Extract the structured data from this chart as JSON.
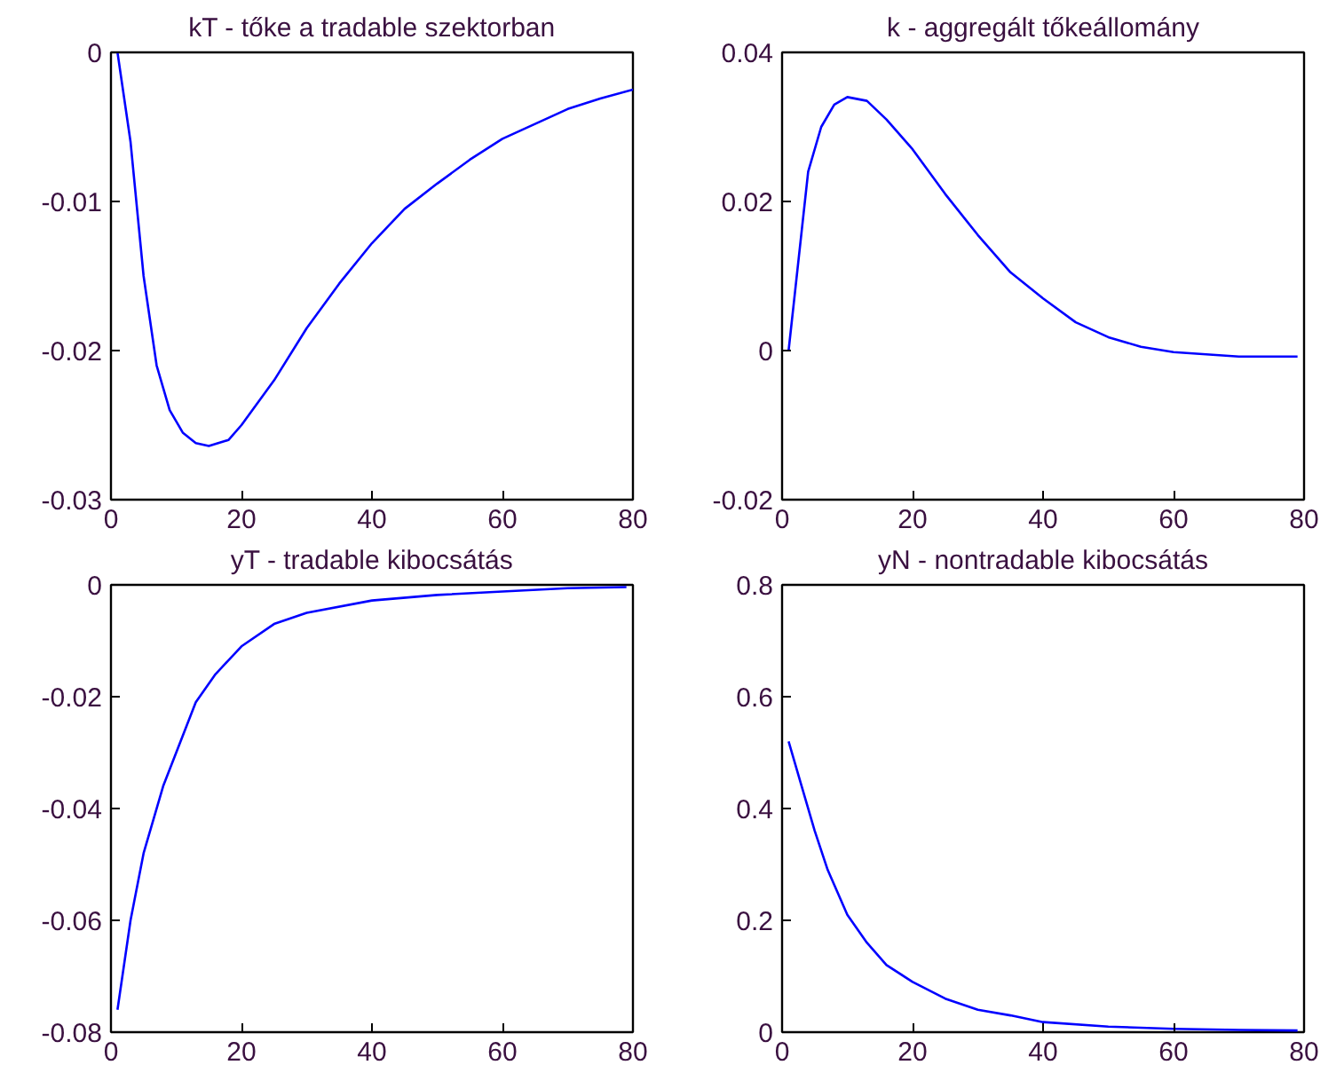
{
  "chart_data": [
    {
      "type": "line",
      "title": "kT - tőke a tradable szektorban",
      "color": "#0000ff",
      "grid": false,
      "xlim": [
        0,
        80
      ],
      "ylim": [
        -0.03,
        0
      ],
      "xticks": [
        0,
        20,
        40,
        60,
        80
      ],
      "yticks": [
        -0.03,
        -0.02,
        -0.01,
        0
      ],
      "x": [
        1,
        3,
        5,
        7,
        9,
        11,
        13,
        15,
        18,
        20,
        25,
        30,
        35,
        40,
        45,
        50,
        55,
        60,
        65,
        70,
        75,
        80
      ],
      "values": [
        0,
        -0.006,
        -0.015,
        -0.021,
        -0.024,
        -0.0255,
        -0.0262,
        -0.0264,
        -0.026,
        -0.025,
        -0.022,
        -0.0185,
        -0.0155,
        -0.0128,
        -0.0105,
        -0.0088,
        -0.0072,
        -0.0058,
        -0.0048,
        -0.0038,
        -0.0031,
        -0.0025
      ]
    },
    {
      "type": "line",
      "title": "k - aggregált tőkeállomány",
      "color": "#0000ff",
      "grid": false,
      "xlim": [
        0,
        80
      ],
      "ylim": [
        -0.02,
        0.04
      ],
      "xticks": [
        0,
        20,
        40,
        60,
        80
      ],
      "yticks": [
        -0.02,
        0,
        0.02,
        0.04
      ],
      "x": [
        1,
        2,
        3,
        4,
        6,
        8,
        10,
        13,
        16,
        20,
        25,
        30,
        35,
        40,
        45,
        50,
        55,
        60,
        65,
        70,
        79
      ],
      "values": [
        0,
        0.008,
        0.016,
        0.024,
        0.03,
        0.033,
        0.034,
        0.0335,
        0.031,
        0.027,
        0.021,
        0.0155,
        0.0105,
        0.007,
        0.0038,
        0.0018,
        0.0005,
        -0.0002,
        -0.0005,
        -0.0008,
        -0.0008
      ]
    },
    {
      "type": "line",
      "title": "yT - tradable kibocsátás",
      "color": "#0000ff",
      "grid": false,
      "xlim": [
        0,
        80
      ],
      "ylim": [
        -0.08,
        0
      ],
      "xticks": [
        0,
        20,
        40,
        60,
        80
      ],
      "yticks": [
        -0.08,
        -0.06,
        -0.04,
        -0.02,
        0
      ],
      "x": [
        1,
        3,
        5,
        8,
        10,
        13,
        16,
        20,
        25,
        30,
        40,
        50,
        60,
        70,
        79
      ],
      "values": [
        -0.076,
        -0.06,
        -0.048,
        -0.036,
        -0.03,
        -0.021,
        -0.016,
        -0.011,
        -0.007,
        -0.005,
        -0.0028,
        -0.0018,
        -0.0012,
        -0.0006,
        -0.0004
      ]
    },
    {
      "type": "line",
      "title": "yN - nontradable kibocsátás",
      "color": "#0000ff",
      "grid": false,
      "xlim": [
        0,
        80
      ],
      "ylim": [
        0,
        0.8
      ],
      "xticks": [
        0,
        20,
        40,
        60,
        80
      ],
      "yticks": [
        0,
        0.2,
        0.4,
        0.6,
        0.8
      ],
      "x": [
        1,
        3,
        5,
        7,
        10,
        13,
        16,
        20,
        25,
        30,
        35,
        40,
        50,
        60,
        70,
        79
      ],
      "values": [
        0.52,
        0.44,
        0.36,
        0.29,
        0.21,
        0.16,
        0.12,
        0.09,
        0.06,
        0.04,
        0.03,
        0.018,
        0.01,
        0.006,
        0.004,
        0.003
      ]
    }
  ]
}
